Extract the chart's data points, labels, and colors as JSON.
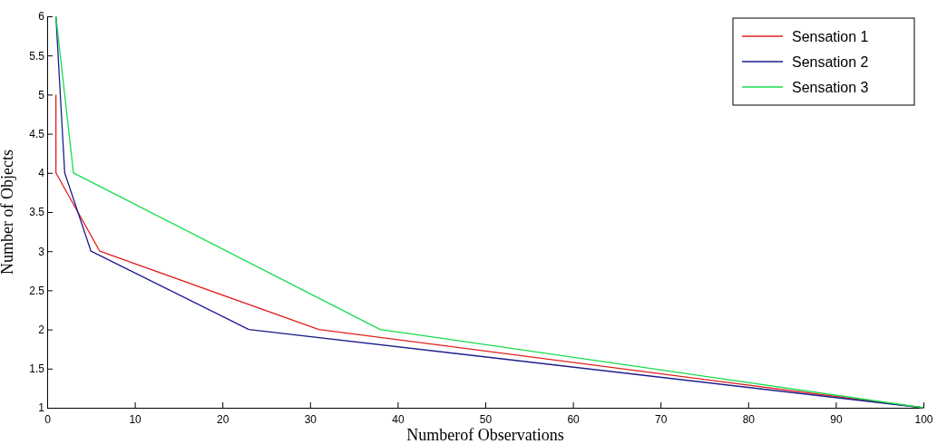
{
  "chart_data": {
    "type": "line",
    "xlabel": "Numberof Observations",
    "ylabel": "Number of Objects",
    "xlim": [
      0,
      100
    ],
    "xticks": [
      0,
      10,
      20,
      30,
      40,
      50,
      60,
      70,
      80,
      90,
      100
    ],
    "ylim": [
      1,
      6
    ],
    "yticks": [
      1,
      1.5,
      2,
      2.5,
      3,
      3.5,
      4,
      4.5,
      5,
      5.5,
      6
    ],
    "legend": "top right",
    "grid": false,
    "series": [
      {
        "name": "Sensation 1",
        "color": "#e0201e",
        "x": [
          1,
          1,
          6,
          31,
          100
        ],
        "values": [
          5,
          4,
          3,
          2,
          1
        ]
      },
      {
        "name": "Sensation 2",
        "color": "#1c1c8c",
        "x": [
          1,
          2,
          5,
          23,
          100
        ],
        "values": [
          6,
          4,
          3,
          2,
          1
        ]
      },
      {
        "name": "Sensation 3",
        "color": "#16dc4c",
        "x": [
          1,
          3,
          38,
          100
        ],
        "values": [
          6,
          4,
          2,
          1
        ]
      }
    ]
  }
}
